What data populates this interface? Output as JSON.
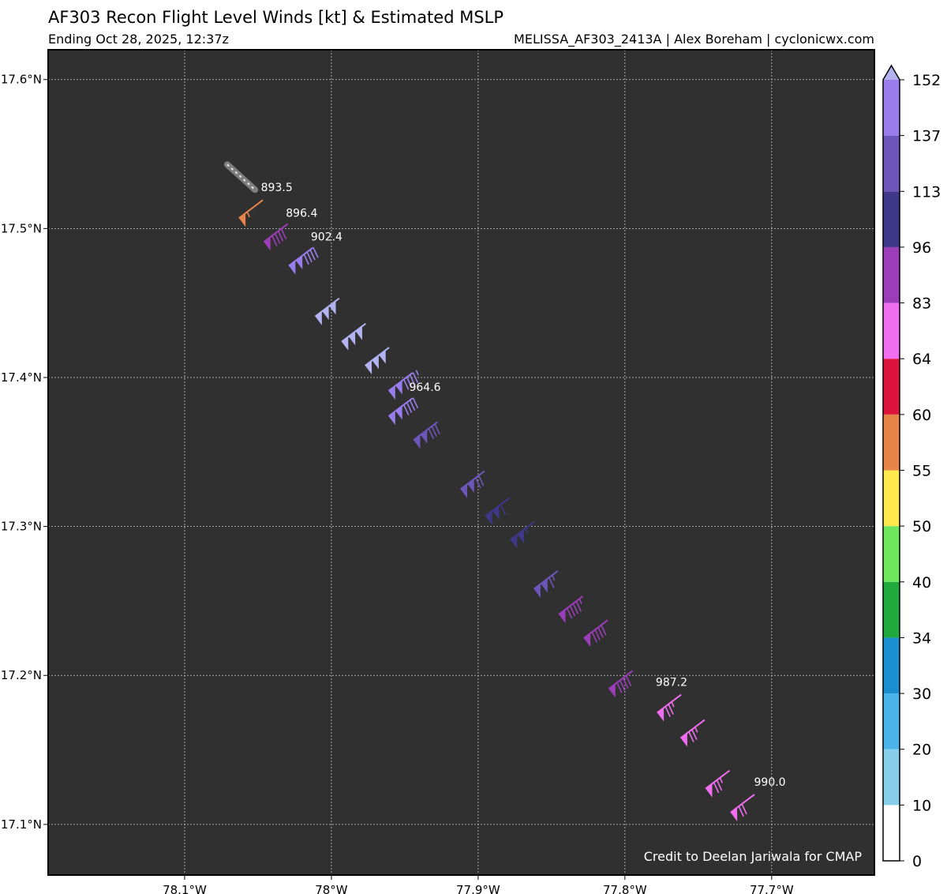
{
  "header": {
    "title": "AF303 Recon Flight Level Winds [kt] & Estimated MSLP",
    "subtitle": "Ending Oct 28, 2025, 12:37z",
    "source": "MELISSA_AF303_2413A | Alex Boreham | cyclonicwx.com"
  },
  "watermark": "Credit to Deelan Jariwala for CMAP",
  "chart_data": {
    "type": "scatter",
    "title": "AF303 Recon Flight Level Winds [kt] & Estimated MSLP",
    "xlabel": "",
    "ylabel": "",
    "xlim": [
      -78.193,
      -77.63
    ],
    "ylim": [
      17.066,
      17.62
    ],
    "grid": true,
    "background": "#303030",
    "x_ticks": [
      {
        "value": -78.1,
        "label": "78.1°W"
      },
      {
        "value": -78.0,
        "label": "78°W"
      },
      {
        "value": -77.9,
        "label": "77.9°W"
      },
      {
        "value": -77.8,
        "label": "77.8°W"
      },
      {
        "value": -77.7,
        "label": "77.7°W"
      }
    ],
    "y_ticks": [
      {
        "value": 17.6,
        "label": "17.6°N"
      },
      {
        "value": 17.5,
        "label": "17.5°N"
      },
      {
        "value": 17.4,
        "label": "17.4°N"
      },
      {
        "value": 17.3,
        "label": "17.3°N"
      },
      {
        "value": 17.2,
        "label": "17.2°N"
      },
      {
        "value": 17.1,
        "label": "17.1°N"
      }
    ],
    "barbs": [
      {
        "lon": -78.063,
        "lat": 17.507,
        "speed": 57
      },
      {
        "lon": -78.046,
        "lat": 17.491,
        "speed": 90
      },
      {
        "lon": -78.029,
        "lat": 17.475,
        "speed": 140
      },
      {
        "lon": -78.011,
        "lat": 17.441,
        "speed": 152
      },
      {
        "lon": -77.993,
        "lat": 17.424,
        "speed": 152
      },
      {
        "lon": -77.977,
        "lat": 17.408,
        "speed": 152
      },
      {
        "lon": -77.961,
        "lat": 17.391,
        "speed": 145
      },
      {
        "lon": -77.961,
        "lat": 17.374,
        "speed": 140
      },
      {
        "lon": -77.944,
        "lat": 17.358,
        "speed": 130
      },
      {
        "lon": -77.912,
        "lat": 17.325,
        "speed": 120
      },
      {
        "lon": -77.895,
        "lat": 17.307,
        "speed": 110
      },
      {
        "lon": -77.878,
        "lat": 17.291,
        "speed": 105
      },
      {
        "lon": -77.862,
        "lat": 17.258,
        "speed": 115
      },
      {
        "lon": -77.845,
        "lat": 17.241,
        "speed": 95
      },
      {
        "lon": -77.828,
        "lat": 17.225,
        "speed": 92
      },
      {
        "lon": -77.811,
        "lat": 17.191,
        "speed": 90
      },
      {
        "lon": -77.778,
        "lat": 17.175,
        "speed": 75
      },
      {
        "lon": -77.762,
        "lat": 17.158,
        "speed": 75
      },
      {
        "lon": -77.745,
        "lat": 17.124,
        "speed": 75
      },
      {
        "lon": -77.728,
        "lat": 17.108,
        "speed": 72
      }
    ],
    "pressure_labels": [
      {
        "lon": -78.048,
        "lat": 17.525,
        "text": "893.5"
      },
      {
        "lon": -78.031,
        "lat": 17.508,
        "text": "896.4"
      },
      {
        "lon": -78.014,
        "lat": 17.492,
        "text": "902.4"
      },
      {
        "lon": -77.947,
        "lat": 17.391,
        "text": "964.6"
      },
      {
        "lon": -77.779,
        "lat": 17.193,
        "text": "987.2"
      },
      {
        "lon": -77.712,
        "lat": 17.126,
        "text": "990.0"
      }
    ],
    "colorbar": {
      "label": "",
      "tick_labels": [
        "0",
        "10",
        "20",
        "30",
        "34",
        "40",
        "50",
        "55",
        "60",
        "64",
        "83",
        "96",
        "113",
        "137",
        "152"
      ],
      "segment_colors": [
        "#ffffff",
        "#87ceeb",
        "#4ab4ea",
        "#1a8fd0",
        "#20a93c",
        "#6ee65e",
        "#fee84c",
        "#e8844a",
        "#dc143c",
        "#f06df0",
        "#9b3db8",
        "#3f388a",
        "#6d56ba",
        "#9a7ded"
      ],
      "extend_color": "#b3b3f2"
    }
  }
}
